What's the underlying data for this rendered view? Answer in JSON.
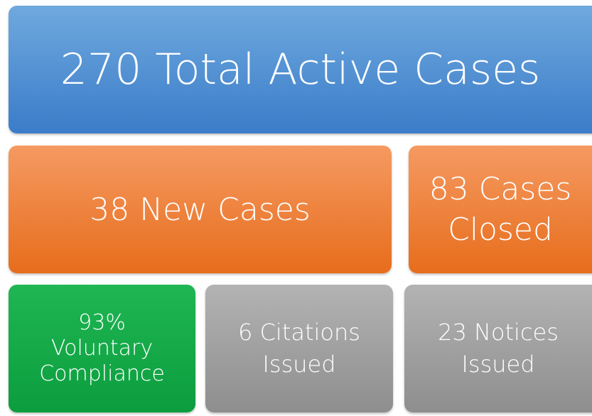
{
  "tiles": [
    {
      "lines": [
        "270 Total Active Cases"
      ]
    },
    {
      "lines": [
        "38 New Cases"
      ]
    },
    {
      "lines": [
        "83 Cases",
        "Closed"
      ]
    },
    {
      "lines": [
        "93%",
        "Voluntary",
        "Compliance"
      ]
    },
    {
      "lines": [
        "6 Citations",
        "Issued"
      ]
    },
    {
      "lines": [
        "23 Notices",
        "Issued"
      ]
    }
  ]
}
